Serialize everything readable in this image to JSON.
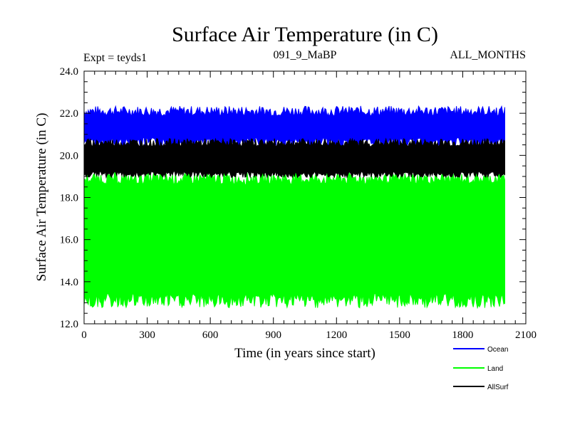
{
  "chart_data": {
    "type": "area",
    "title": "Surface Air Temperature (in C)",
    "subtitle_left": "Expt = teyds1",
    "subtitle_center": "091_9_MaBP",
    "subtitle_right": "ALL_MONTHS",
    "xlabel": "Time (in years since start)",
    "ylabel": "Surface Air Temperature (in C)",
    "xlim": [
      0,
      2100
    ],
    "ylim": [
      12.0,
      24.0
    ],
    "x_ticks": [
      0,
      300,
      600,
      900,
      1200,
      1500,
      1800,
      2100
    ],
    "x_tick_labels": [
      "0",
      "300",
      "600",
      "900",
      "1200",
      "1500",
      "1800",
      "2100"
    ],
    "y_ticks": [
      12.0,
      14.0,
      16.0,
      18.0,
      20.0,
      22.0,
      24.0
    ],
    "y_tick_labels": [
      "12.0",
      "14.0",
      "16.0",
      "18.0",
      "20.0",
      "22.0",
      "24.0"
    ],
    "x_data_range": [
      0,
      2000
    ],
    "series": [
      {
        "name": "Ocean",
        "color": "#0000ff",
        "low": 20.6,
        "high": 22.1,
        "low_spread": 0.25,
        "high_spread": 0.25
      },
      {
        "name": "Land",
        "color": "#00ff00",
        "low": 13.1,
        "high": 18.9,
        "low_spread": 0.35,
        "high_spread": 0.3
      },
      {
        "name": "AllSurf",
        "color": "#000000",
        "low": 19.1,
        "high": 20.6,
        "low_spread": 0.15,
        "high_spread": 0.2
      }
    ],
    "legend_position": "bottom-right"
  }
}
